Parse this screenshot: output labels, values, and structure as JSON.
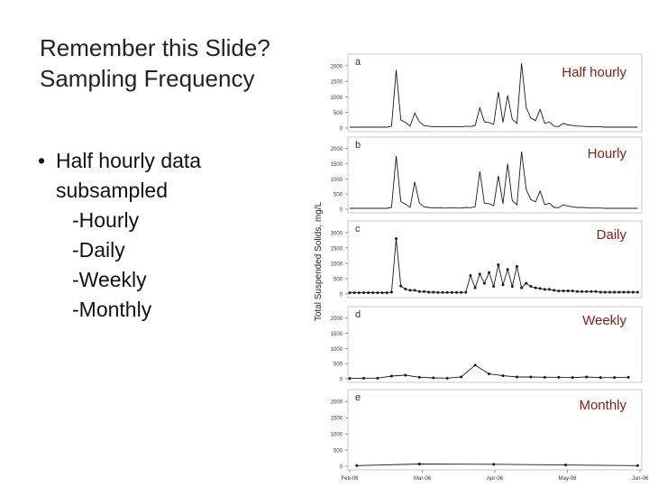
{
  "slide": {
    "title_line1": "Remember this Slide?",
    "title_line2": "Sampling Frequency",
    "bullet": "Half hourly data",
    "bullet_cont": "subsampled",
    "subitems": [
      "-Hourly",
      "-Daily",
      "-Weekly",
      "-Monthly"
    ]
  },
  "colors": {
    "label": "#8b1a10",
    "line": "#1a1a1a"
  },
  "chart_data": [
    {
      "type": "line",
      "panel": "a",
      "annotation": "Half hourly",
      "ylabel": "Total Suspended Solids, mg/L",
      "yticks": [
        0,
        500,
        1000,
        1500,
        2000
      ],
      "ylim": [
        0,
        2200
      ],
      "xlim": [
        0,
        125
      ],
      "x": [
        0,
        2,
        4,
        6,
        8,
        10,
        12,
        14,
        16,
        18,
        20,
        22,
        24,
        26,
        28,
        30,
        32,
        34,
        36,
        38,
        40,
        42,
        44,
        46,
        48,
        50,
        52,
        54,
        56,
        58,
        60,
        62,
        64,
        66,
        68,
        70,
        72,
        74,
        76,
        78,
        80,
        82,
        84,
        86,
        88,
        90,
        92,
        94,
        96,
        98,
        100,
        102,
        104,
        106,
        108,
        110,
        112,
        114,
        116,
        118,
        120,
        122,
        124
      ],
      "series": [
        {
          "values": [
            30,
            30,
            30,
            30,
            30,
            30,
            30,
            30,
            30,
            60,
            1860,
            260,
            180,
            60,
            480,
            200,
            80,
            60,
            40,
            50,
            40,
            40,
            50,
            40,
            40,
            60,
            50,
            80,
            650,
            200,
            180,
            120,
            1160,
            180,
            1050,
            280,
            150,
            2080,
            650,
            320,
            240,
            600,
            150,
            200,
            60,
            50,
            150,
            100,
            80,
            60,
            60,
            50,
            40,
            40,
            40,
            30,
            30,
            30,
            30,
            30,
            30,
            30,
            30
          ]
        }
      ]
    },
    {
      "type": "line",
      "panel": "b",
      "annotation": "Hourly",
      "yticks": [
        0,
        500,
        1000,
        1500,
        2000
      ],
      "ylim": [
        0,
        2200
      ],
      "xlim": [
        0,
        125
      ],
      "x": [
        0,
        2,
        4,
        6,
        8,
        10,
        12,
        14,
        16,
        18,
        20,
        22,
        24,
        26,
        28,
        30,
        32,
        34,
        36,
        38,
        40,
        42,
        44,
        46,
        48,
        50,
        52,
        54,
        56,
        58,
        60,
        62,
        64,
        66,
        68,
        70,
        72,
        74,
        76,
        78,
        80,
        82,
        84,
        86,
        88,
        90,
        92,
        94,
        96,
        98,
        100,
        102,
        104,
        106,
        108,
        110,
        112,
        114,
        116,
        118,
        120,
        122,
        124
      ],
      "series": [
        {
          "values": [
            30,
            30,
            30,
            30,
            30,
            30,
            30,
            30,
            30,
            60,
            1750,
            250,
            170,
            60,
            900,
            200,
            80,
            60,
            40,
            50,
            40,
            40,
            50,
            40,
            40,
            60,
            50,
            80,
            1250,
            200,
            180,
            120,
            1100,
            180,
            1500,
            280,
            150,
            1900,
            650,
            320,
            240,
            600,
            150,
            200,
            60,
            50,
            150,
            100,
            80,
            60,
            60,
            50,
            40,
            40,
            40,
            30,
            30,
            30,
            30,
            30,
            30,
            30,
            30
          ]
        }
      ]
    },
    {
      "type": "line",
      "panel": "c",
      "annotation": "Daily",
      "yticks": [
        0,
        500,
        1000,
        1500,
        2000
      ],
      "ylim": [
        0,
        2200
      ],
      "xlim": [
        0,
        125
      ],
      "x": [
        0,
        2,
        4,
        6,
        8,
        10,
        12,
        14,
        16,
        18,
        20,
        22,
        24,
        26,
        28,
        30,
        32,
        34,
        36,
        38,
        40,
        42,
        44,
        46,
        48,
        50,
        52,
        54,
        56,
        58,
        60,
        62,
        64,
        66,
        68,
        70,
        72,
        74,
        76,
        78,
        80,
        82,
        84,
        86,
        88,
        90,
        92,
        94,
        96,
        98,
        100,
        102,
        104,
        106,
        108,
        110,
        112,
        114,
        116,
        118,
        120,
        122,
        124
      ],
      "series": [
        {
          "values": [
            40,
            40,
            40,
            40,
            40,
            40,
            40,
            40,
            40,
            60,
            1800,
            260,
            160,
            120,
            120,
            80,
            80,
            60,
            60,
            50,
            50,
            50,
            50,
            50,
            50,
            60,
            600,
            200,
            650,
            350,
            700,
            250,
            950,
            300,
            800,
            250,
            900,
            200,
            350,
            250,
            200,
            180,
            150,
            150,
            120,
            100,
            100,
            100,
            100,
            80,
            80,
            80,
            80,
            80,
            60,
            60,
            60,
            60,
            60,
            60,
            60,
            60,
            60
          ]
        }
      ]
    },
    {
      "type": "line",
      "panel": "d",
      "annotation": "Weekly",
      "yticks": [
        0,
        500,
        1000,
        1500,
        2000
      ],
      "ylim": [
        0,
        2200
      ],
      "xlim": [
        0,
        125
      ],
      "x": [
        0,
        6,
        12,
        18,
        24,
        30,
        36,
        42,
        48,
        54,
        60,
        66,
        72,
        78,
        84,
        90,
        96,
        102,
        108,
        114,
        120
      ],
      "series": [
        {
          "values": [
            10,
            20,
            20,
            90,
            120,
            50,
            30,
            20,
            60,
            450,
            160,
            100,
            60,
            60,
            50,
            50,
            40,
            60,
            40,
            40,
            50
          ]
        }
      ]
    },
    {
      "type": "line",
      "panel": "e",
      "annotation": "Monthly",
      "yticks": [
        0,
        500,
        1000,
        1500,
        2000
      ],
      "xticks": [
        "Feb-06",
        "Mar-06",
        "Apr-06",
        "May-06",
        "Jun-06"
      ],
      "ylim": [
        0,
        2200
      ],
      "xlim": [
        0,
        125
      ],
      "x": [
        3,
        30,
        62,
        93,
        124
      ],
      "series": [
        {
          "values": [
            20,
            70,
            60,
            40,
            20
          ]
        }
      ]
    }
  ]
}
